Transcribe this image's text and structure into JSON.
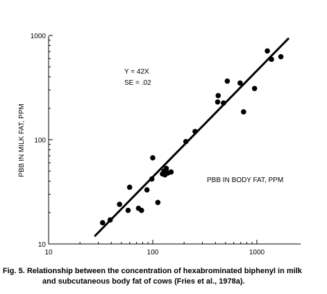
{
  "chart_data": {
    "type": "scatter",
    "title": "",
    "xlabel": "PBB IN BODY FAT, PPM",
    "ylabel": "PBB IN MILK FAT, PPM",
    "xscale": "log",
    "yscale": "log",
    "xlim": [
      10,
      2000
    ],
    "ylim": [
      10,
      1000
    ],
    "x_ticks": [
      "10",
      "100",
      "1000"
    ],
    "y_ticks": [
      "10",
      "100",
      "1000"
    ],
    "grid": false,
    "legend": "none",
    "annotations": [
      "Y = 42X",
      "SE = .02"
    ],
    "points": [
      {
        "x": 33,
        "y": 16
      },
      {
        "x": 39,
        "y": 17
      },
      {
        "x": 48,
        "y": 24
      },
      {
        "x": 58,
        "y": 21
      },
      {
        "x": 60,
        "y": 35
      },
      {
        "x": 73,
        "y": 22
      },
      {
        "x": 78,
        "y": 21
      },
      {
        "x": 88,
        "y": 33
      },
      {
        "x": 98,
        "y": 42
      },
      {
        "x": 100,
        "y": 67
      },
      {
        "x": 112,
        "y": 25
      },
      {
        "x": 124,
        "y": 47
      },
      {
        "x": 128,
        "y": 50
      },
      {
        "x": 131,
        "y": 46
      },
      {
        "x": 135,
        "y": 53
      },
      {
        "x": 140,
        "y": 48
      },
      {
        "x": 150,
        "y": 49
      },
      {
        "x": 208,
        "y": 96
      },
      {
        "x": 255,
        "y": 120
      },
      {
        "x": 420,
        "y": 230
      },
      {
        "x": 425,
        "y": 265
      },
      {
        "x": 478,
        "y": 225
      },
      {
        "x": 520,
        "y": 365
      },
      {
        "x": 690,
        "y": 350
      },
      {
        "x": 745,
        "y": 185
      },
      {
        "x": 950,
        "y": 310
      },
      {
        "x": 1260,
        "y": 710
      },
      {
        "x": 1380,
        "y": 590
      },
      {
        "x": 1700,
        "y": 625
      }
    ],
    "fit_line": {
      "x": [
        28,
        2000
      ],
      "y": [
        12,
        930
      ]
    },
    "colors": {
      "points": "#000000",
      "line": "#000000",
      "axes": "#000000"
    }
  },
  "caption": {
    "line1": "Fig. 5.  Relationship between the concentration of hexabrominated biphenyl in milk",
    "line2": "and subcutaneous body fat of cows (Fries et al., 1978a)."
  }
}
